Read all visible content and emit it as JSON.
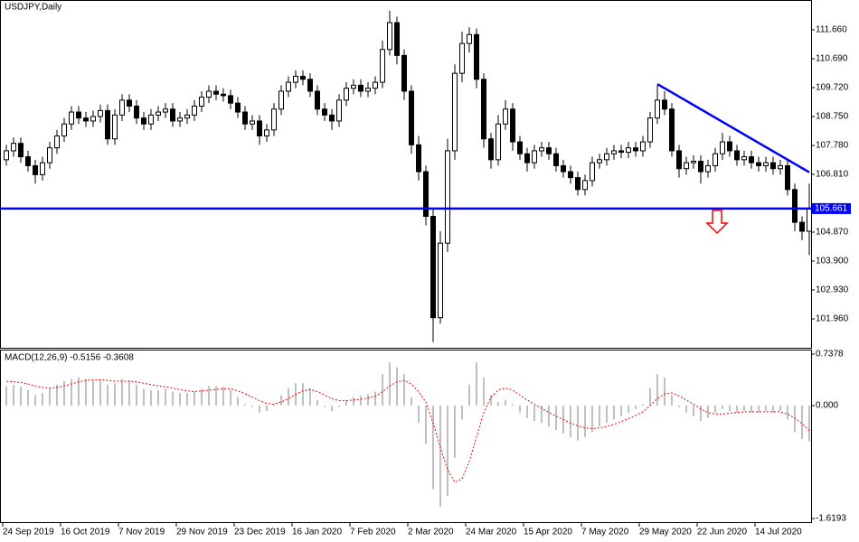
{
  "chart_data": {
    "type": "candlestick",
    "title": "USDJPY,Daily",
    "categories": [
      "24 Sep 2019",
      null,
      null,
      null,
      null,
      null,
      null,
      null,
      "16 Oct 2019",
      null,
      null,
      null,
      null,
      null,
      null,
      null,
      "7 Nov 2019",
      null,
      null,
      null,
      null,
      null,
      null,
      null,
      "29 Nov 2019",
      null,
      null,
      null,
      null,
      null,
      null,
      null,
      "23 Dec 2019",
      null,
      null,
      null,
      null,
      null,
      null,
      null,
      "16 Jan 2020",
      null,
      null,
      null,
      null,
      null,
      null,
      null,
      "7 Feb 2020",
      null,
      null,
      null,
      null,
      null,
      null,
      null,
      "2 Mar 2020",
      null,
      null,
      null,
      null,
      null,
      null,
      null,
      "24 Mar 2020",
      null,
      null,
      null,
      null,
      null,
      null,
      null,
      "15 Apr 2020",
      null,
      null,
      null,
      null,
      null,
      null,
      null,
      "7 May 2020",
      null,
      null,
      null,
      null,
      null,
      null,
      null,
      "29 May 2020",
      null,
      null,
      null,
      null,
      null,
      null,
      null,
      "22 Jun 2020",
      null,
      null,
      null,
      null,
      null,
      null,
      null,
      "14 Jul 2020",
      null,
      null,
      null,
      null,
      null,
      null,
      null
    ],
    "open": [
      107.3,
      107.6,
      107.85,
      107.4,
      107.1,
      106.8,
      107.2,
      107.7,
      108.1,
      108.5,
      108.9,
      108.7,
      108.6,
      108.75,
      108.95,
      108.0,
      108.8,
      109.3,
      109.1,
      108.7,
      108.5,
      108.8,
      108.9,
      109.0,
      108.6,
      108.7,
      108.8,
      109.1,
      109.4,
      109.6,
      109.5,
      109.45,
      109.2,
      108.9,
      108.5,
      108.6,
      108.1,
      108.3,
      109.0,
      109.6,
      109.9,
      110.1,
      110.0,
      109.6,
      109.0,
      108.8,
      108.6,
      109.3,
      109.7,
      109.8,
      109.6,
      109.7,
      109.9,
      111.0,
      111.9,
      110.8,
      109.6,
      107.8,
      106.9,
      105.4,
      102.0,
      104.5,
      107.6,
      110.2,
      111.2,
      111.5,
      110.0,
      108.0,
      107.3,
      108.5,
      109.0,
      107.9,
      107.5,
      107.2,
      107.6,
      107.7,
      107.5,
      107.1,
      106.9,
      106.7,
      106.3,
      106.6,
      107.2,
      107.3,
      107.5,
      107.6,
      107.55,
      107.7,
      107.6,
      107.9,
      108.7,
      109.3,
      109.0,
      107.6,
      107.0,
      107.2,
      107.25,
      106.9,
      107.1,
      107.5,
      107.9,
      107.6,
      107.3,
      107.4,
      107.2,
      107.1,
      107.2,
      107.0,
      107.1,
      106.3,
      105.2,
      104.9
    ],
    "high": [
      107.8,
      108.05,
      108.05,
      107.6,
      107.3,
      107.4,
      107.9,
      108.3,
      108.7,
      109.1,
      109.1,
      108.9,
      108.95,
      109.15,
      109.15,
      109.0,
      109.5,
      109.5,
      109.3,
      108.9,
      109.0,
      109.1,
      109.2,
      109.2,
      108.9,
      109.0,
      109.3,
      109.6,
      109.8,
      109.8,
      109.7,
      109.65,
      109.4,
      109.1,
      108.8,
      108.8,
      108.5,
      109.2,
      109.8,
      110.1,
      110.3,
      110.3,
      110.2,
      109.8,
      109.2,
      109.0,
      109.5,
      109.9,
      110.0,
      110.0,
      109.9,
      110.1,
      111.3,
      112.3,
      112.1,
      111.0,
      109.8,
      108.1,
      107.1,
      105.7,
      104.9,
      108.0,
      110.5,
      111.6,
      111.75,
      111.7,
      110.2,
      108.2,
      108.8,
      109.3,
      109.2,
      108.1,
      107.7,
      107.8,
      107.9,
      107.9,
      107.7,
      107.3,
      107.1,
      106.9,
      106.8,
      107.4,
      107.5,
      107.7,
      107.8,
      107.8,
      107.9,
      107.9,
      108.1,
      108.9,
      109.8,
      109.6,
      109.2,
      107.8,
      107.4,
      107.45,
      107.45,
      107.3,
      107.7,
      108.2,
      108.1,
      107.8,
      107.6,
      107.6,
      107.4,
      107.4,
      107.4,
      107.3,
      107.3,
      106.5,
      105.4,
      106.5
    ],
    "low": [
      107.1,
      107.4,
      107.2,
      106.9,
      106.5,
      106.6,
      107.0,
      107.5,
      107.9,
      108.3,
      108.5,
      108.4,
      108.4,
      108.55,
      107.8,
      107.8,
      108.6,
      108.9,
      108.5,
      108.3,
      108.3,
      108.6,
      108.7,
      108.4,
      108.4,
      108.5,
      108.6,
      108.9,
      109.2,
      109.3,
      109.25,
      109.0,
      108.7,
      108.3,
      108.3,
      107.8,
      107.9,
      108.1,
      108.8,
      109.4,
      109.7,
      109.8,
      109.4,
      108.8,
      108.6,
      108.3,
      108.4,
      109.1,
      109.5,
      109.4,
      109.4,
      109.5,
      109.7,
      110.8,
      110.5,
      109.3,
      107.5,
      106.6,
      105.1,
      101.18,
      101.8,
      104.2,
      107.3,
      109.9,
      110.9,
      109.7,
      107.7,
      107.0,
      107.1,
      108.3,
      107.6,
      107.3,
      106.9,
      107.0,
      107.4,
      107.3,
      106.9,
      106.7,
      106.5,
      106.1,
      106.1,
      106.4,
      107.0,
      107.1,
      107.3,
      107.35,
      107.35,
      107.4,
      107.4,
      107.7,
      108.5,
      108.8,
      107.4,
      106.7,
      106.8,
      107.0,
      106.5,
      106.7,
      106.9,
      107.3,
      107.4,
      107.1,
      107.1,
      107.0,
      106.9,
      106.9,
      106.8,
      106.8,
      106.1,
      104.9,
      104.6,
      104.1
    ],
    "close": [
      107.6,
      107.85,
      107.4,
      107.1,
      106.8,
      107.2,
      107.7,
      108.1,
      108.5,
      108.9,
      108.7,
      108.6,
      108.75,
      108.95,
      108.0,
      108.8,
      109.3,
      109.1,
      108.7,
      108.5,
      108.8,
      108.9,
      109.0,
      108.6,
      108.7,
      108.8,
      109.1,
      109.4,
      109.6,
      109.5,
      109.45,
      109.2,
      108.9,
      108.5,
      108.6,
      108.1,
      108.3,
      109.0,
      109.6,
      109.9,
      110.1,
      110.0,
      109.6,
      109.0,
      108.8,
      108.6,
      109.3,
      109.7,
      109.8,
      109.6,
      109.7,
      109.9,
      111.0,
      111.9,
      110.8,
      109.6,
      107.8,
      106.9,
      105.4,
      102.0,
      104.5,
      107.6,
      110.2,
      111.2,
      111.5,
      110.0,
      108.0,
      107.3,
      108.5,
      109.0,
      107.9,
      107.5,
      107.2,
      107.6,
      107.7,
      107.5,
      107.1,
      106.9,
      106.7,
      106.3,
      106.6,
      107.2,
      107.3,
      107.5,
      107.6,
      107.55,
      107.7,
      107.6,
      107.9,
      108.7,
      109.3,
      109.0,
      107.6,
      107.0,
      107.2,
      107.25,
      106.9,
      107.1,
      107.5,
      107.9,
      107.6,
      107.3,
      107.4,
      107.2,
      107.1,
      107.2,
      107.0,
      107.1,
      106.3,
      105.2,
      104.9,
      105.66
    ],
    "ylim": [
      101.02,
      112.63
    ],
    "yticks": [
      {
        "value": 101.96,
        "label": "101.960"
      },
      {
        "value": 102.93,
        "label": "102.930"
      },
      {
        "value": 103.9,
        "label": "103.900"
      },
      {
        "value": 104.87,
        "label": "104.870"
      },
      {
        "value": 106.81,
        "label": "106.810"
      },
      {
        "value": 107.78,
        "label": "107.780"
      },
      {
        "value": 108.75,
        "label": "108.750"
      },
      {
        "value": 109.72,
        "label": "109.720"
      },
      {
        "value": 110.69,
        "label": "110.690"
      },
      {
        "value": 111.66,
        "label": "111.660"
      }
    ],
    "up_color": "#ffffff",
    "down_color": "#000000",
    "hline": {
      "value": 105.661,
      "label": "105.661",
      "color": "#0000ff"
    },
    "trendline": {
      "x": [
        90,
        111
      ],
      "y": [
        109.84,
        106.88
      ],
      "color": "#0000ff"
    },
    "macd": {
      "title": "MACD(12,26,9) -0.5156 -0.3608",
      "histogram": [
        0.28,
        0.3,
        0.27,
        0.22,
        0.15,
        0.18,
        0.25,
        0.3,
        0.35,
        0.38,
        0.4,
        0.38,
        0.36,
        0.37,
        0.3,
        0.32,
        0.38,
        0.36,
        0.3,
        0.24,
        0.22,
        0.22,
        0.24,
        0.2,
        0.18,
        0.18,
        0.2,
        0.24,
        0.28,
        0.28,
        0.27,
        0.22,
        0.12,
        0.02,
        -0.02,
        -0.1,
        -0.08,
        0.02,
        0.15,
        0.25,
        0.32,
        0.32,
        0.25,
        0.08,
        -0.02,
        -0.08,
        -0.02,
        0.08,
        0.12,
        0.14,
        0.16,
        0.2,
        0.45,
        0.62,
        0.55,
        0.45,
        0.12,
        -0.25,
        -0.55,
        -1.2,
        -1.45,
        -1.3,
        -0.75,
        -0.2,
        0.3,
        0.62,
        0.4,
        0.15,
        0.05,
        0.08,
        0.02,
        -0.1,
        -0.18,
        -0.22,
        -0.25,
        -0.3,
        -0.35,
        -0.4,
        -0.45,
        -0.5,
        -0.45,
        -0.38,
        -0.3,
        -0.25,
        -0.2,
        -0.15,
        -0.1,
        -0.05,
        0.02,
        0.25,
        0.45,
        0.4,
        0.15,
        -0.02,
        -0.1,
        -0.15,
        -0.22,
        -0.18,
        -0.1,
        -0.05,
        -0.08,
        -0.1,
        -0.08,
        -0.1,
        -0.1,
        -0.08,
        -0.1,
        -0.08,
        -0.2,
        -0.38,
        -0.48,
        -0.5156
      ],
      "signal": [
        0.35,
        0.34,
        0.33,
        0.31,
        0.28,
        0.26,
        0.25,
        0.26,
        0.28,
        0.31,
        0.34,
        0.36,
        0.37,
        0.37,
        0.36,
        0.35,
        0.35,
        0.35,
        0.34,
        0.32,
        0.3,
        0.28,
        0.27,
        0.25,
        0.23,
        0.21,
        0.2,
        0.21,
        0.22,
        0.23,
        0.24,
        0.24,
        0.21,
        0.17,
        0.12,
        0.07,
        0.03,
        0.02,
        0.05,
        0.1,
        0.16,
        0.21,
        0.23,
        0.2,
        0.15,
        0.1,
        0.07,
        0.07,
        0.08,
        0.09,
        0.11,
        0.13,
        0.2,
        0.28,
        0.34,
        0.36,
        0.31,
        0.2,
        0.05,
        -0.25,
        -0.6,
        -0.92,
        -1.1,
        -1.05,
        -0.8,
        -0.45,
        -0.1,
        0.12,
        0.22,
        0.25,
        0.22,
        0.15,
        0.08,
        0.02,
        -0.04,
        -0.1,
        -0.15,
        -0.2,
        -0.25,
        -0.29,
        -0.32,
        -0.33,
        -0.32,
        -0.3,
        -0.27,
        -0.23,
        -0.19,
        -0.14,
        -0.09,
        0.0,
        0.1,
        0.17,
        0.18,
        0.14,
        0.08,
        0.02,
        -0.05,
        -0.1,
        -0.12,
        -0.12,
        -0.11,
        -0.1,
        -0.09,
        -0.09,
        -0.09,
        -0.09,
        -0.09,
        -0.09,
        -0.12,
        -0.18,
        -0.26,
        -0.3608
      ],
      "ylim": [
        -1.6193,
        0.7378
      ],
      "yticks": [
        0.7378,
        {
          "value": 0,
          "label": "0.000"
        },
        -1.6193
      ],
      "hist_color": "#c0c0c0",
      "signal_color": "#ff0000"
    }
  }
}
